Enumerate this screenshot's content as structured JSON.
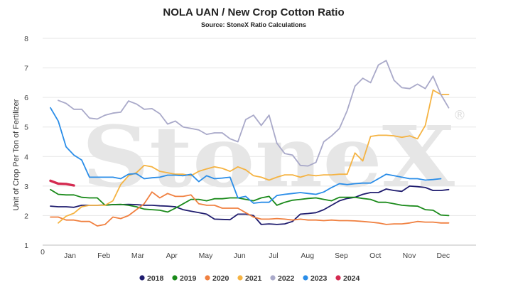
{
  "chart_data": {
    "type": "line",
    "title": "NOLA UAN / New Crop Cotton Ratio",
    "subtitle": "Source: StoneX Ratio Calculations",
    "watermark": "StoneX",
    "ylabel": "Unit of Crop Per Ton of Fertilizer",
    "ylim": [
      1,
      8
    ],
    "yticks": [
      "1",
      "2",
      "3",
      "4",
      "5",
      "6",
      "7",
      "8"
    ],
    "x_origin_label": "0",
    "months": [
      "Jan",
      "Feb",
      "Mar",
      "Apr",
      "May",
      "Jun",
      "Jul",
      "Aug",
      "Sep",
      "Oct",
      "Nov",
      "Dec"
    ],
    "grid": "horizontal",
    "legend_position": "bottom",
    "x_unit": "week of year",
    "series": [
      {
        "name": "2018",
        "color": "#1f1c6e",
        "points": [
          [
            1,
            2.32
          ],
          [
            2,
            2.3
          ],
          [
            3,
            2.3
          ],
          [
            4,
            2.28
          ],
          [
            5,
            2.35
          ],
          [
            6,
            2.35
          ],
          [
            7,
            2.35
          ],
          [
            8,
            2.36
          ],
          [
            9,
            2.37
          ],
          [
            10,
            2.37
          ],
          [
            11,
            2.38
          ],
          [
            12,
            2.37
          ],
          [
            13,
            2.35
          ],
          [
            14,
            2.35
          ],
          [
            15,
            2.33
          ],
          [
            16,
            2.32
          ],
          [
            17,
            2.3
          ],
          [
            18,
            2.2
          ],
          [
            19,
            2.15
          ],
          [
            20,
            2.1
          ],
          [
            21,
            2.05
          ],
          [
            22,
            1.88
          ],
          [
            23,
            1.87
          ],
          [
            24,
            1.86
          ],
          [
            25,
            2.05
          ],
          [
            26,
            2.05
          ],
          [
            27,
            2.0
          ],
          [
            28,
            1.7
          ],
          [
            29,
            1.72
          ],
          [
            30,
            1.7
          ],
          [
            31,
            1.72
          ],
          [
            32,
            1.8
          ],
          [
            33,
            2.05
          ],
          [
            34,
            2.07
          ],
          [
            35,
            2.1
          ],
          [
            36,
            2.2
          ],
          [
            37,
            2.35
          ],
          [
            38,
            2.5
          ],
          [
            39,
            2.58
          ],
          [
            40,
            2.62
          ],
          [
            41,
            2.72
          ],
          [
            42,
            2.78
          ],
          [
            43,
            2.78
          ],
          [
            44,
            2.9
          ],
          [
            45,
            2.85
          ],
          [
            46,
            2.82
          ],
          [
            47,
            3.0
          ],
          [
            48,
            2.98
          ],
          [
            49,
            2.95
          ],
          [
            50,
            2.85
          ],
          [
            51,
            2.85
          ],
          [
            52,
            2.88
          ]
        ]
      },
      {
        "name": "2019",
        "color": "#1a8a1a",
        "points": [
          [
            1,
            2.88
          ],
          [
            2,
            2.72
          ],
          [
            3,
            2.7
          ],
          [
            4,
            2.7
          ],
          [
            5,
            2.62
          ],
          [
            6,
            2.6
          ],
          [
            7,
            2.6
          ],
          [
            8,
            2.35
          ],
          [
            9,
            2.37
          ],
          [
            10,
            2.38
          ],
          [
            11,
            2.35
          ],
          [
            12,
            2.3
          ],
          [
            13,
            2.22
          ],
          [
            14,
            2.2
          ],
          [
            15,
            2.18
          ],
          [
            16,
            2.12
          ],
          [
            17,
            2.25
          ],
          [
            18,
            2.4
          ],
          [
            19,
            2.55
          ],
          [
            20,
            2.55
          ],
          [
            21,
            2.5
          ],
          [
            22,
            2.57
          ],
          [
            23,
            2.57
          ],
          [
            24,
            2.6
          ],
          [
            25,
            2.6
          ],
          [
            26,
            2.55
          ],
          [
            27,
            2.5
          ],
          [
            28,
            2.6
          ],
          [
            29,
            2.65
          ],
          [
            30,
            2.35
          ],
          [
            31,
            2.45
          ],
          [
            32,
            2.52
          ],
          [
            33,
            2.55
          ],
          [
            34,
            2.58
          ],
          [
            35,
            2.6
          ],
          [
            36,
            2.55
          ],
          [
            37,
            2.5
          ],
          [
            38,
            2.62
          ],
          [
            39,
            2.62
          ],
          [
            40,
            2.62
          ],
          [
            41,
            2.58
          ],
          [
            42,
            2.55
          ],
          [
            43,
            2.45
          ],
          [
            44,
            2.45
          ],
          [
            45,
            2.4
          ],
          [
            46,
            2.35
          ],
          [
            47,
            2.33
          ],
          [
            48,
            2.32
          ],
          [
            49,
            2.2
          ],
          [
            50,
            2.18
          ],
          [
            51,
            2.02
          ],
          [
            52,
            2.0
          ]
        ]
      },
      {
        "name": "2020",
        "color": "#f08040",
        "points": [
          [
            1,
            1.95
          ],
          [
            2,
            1.95
          ],
          [
            3,
            1.85
          ],
          [
            4,
            1.85
          ],
          [
            5,
            1.8
          ],
          [
            6,
            1.8
          ],
          [
            7,
            1.65
          ],
          [
            8,
            1.7
          ],
          [
            9,
            1.95
          ],
          [
            10,
            1.9
          ],
          [
            11,
            2.0
          ],
          [
            12,
            2.2
          ],
          [
            13,
            2.4
          ],
          [
            14,
            2.8
          ],
          [
            15,
            2.6
          ],
          [
            16,
            2.75
          ],
          [
            17,
            2.65
          ],
          [
            18,
            2.65
          ],
          [
            19,
            2.7
          ],
          [
            20,
            2.4
          ],
          [
            21,
            2.35
          ],
          [
            22,
            2.35
          ],
          [
            23,
            2.25
          ],
          [
            24,
            2.25
          ],
          [
            25,
            2.25
          ],
          [
            26,
            2.1
          ],
          [
            27,
            1.95
          ],
          [
            28,
            1.88
          ],
          [
            29,
            1.88
          ],
          [
            30,
            1.9
          ],
          [
            31,
            1.88
          ],
          [
            32,
            1.85
          ],
          [
            33,
            1.88
          ],
          [
            34,
            1.85
          ],
          [
            35,
            1.85
          ],
          [
            36,
            1.83
          ],
          [
            37,
            1.85
          ],
          [
            38,
            1.83
          ],
          [
            39,
            1.83
          ],
          [
            40,
            1.82
          ],
          [
            41,
            1.8
          ],
          [
            42,
            1.78
          ],
          [
            43,
            1.75
          ],
          [
            44,
            1.7
          ],
          [
            45,
            1.72
          ],
          [
            46,
            1.72
          ],
          [
            47,
            1.75
          ],
          [
            48,
            1.8
          ],
          [
            49,
            1.78
          ],
          [
            50,
            1.78
          ],
          [
            51,
            1.75
          ],
          [
            52,
            1.75
          ]
        ]
      },
      {
        "name": "2021",
        "color": "#f5b342",
        "points": [
          [
            2,
            1.75
          ],
          [
            3,
            1.98
          ],
          [
            4,
            2.08
          ],
          [
            5,
            2.3
          ],
          [
            6,
            2.35
          ],
          [
            7,
            2.35
          ],
          [
            8,
            2.35
          ],
          [
            9,
            2.5
          ],
          [
            10,
            3.05
          ],
          [
            11,
            3.35
          ],
          [
            12,
            3.45
          ],
          [
            13,
            3.7
          ],
          [
            14,
            3.65
          ],
          [
            15,
            3.5
          ],
          [
            16,
            3.45
          ],
          [
            17,
            3.4
          ],
          [
            18,
            3.4
          ],
          [
            19,
            3.35
          ],
          [
            20,
            3.5
          ],
          [
            21,
            3.58
          ],
          [
            22,
            3.65
          ],
          [
            23,
            3.6
          ],
          [
            24,
            3.5
          ],
          [
            25,
            3.65
          ],
          [
            26,
            3.55
          ],
          [
            27,
            3.35
          ],
          [
            28,
            3.3
          ],
          [
            29,
            3.2
          ],
          [
            30,
            3.3
          ],
          [
            31,
            3.38
          ],
          [
            32,
            3.38
          ],
          [
            33,
            3.3
          ],
          [
            34,
            3.38
          ],
          [
            35,
            3.35
          ],
          [
            36,
            3.38
          ],
          [
            37,
            3.38
          ],
          [
            38,
            3.4
          ],
          [
            39,
            3.4
          ],
          [
            40,
            4.12
          ],
          [
            41,
            3.85
          ],
          [
            42,
            4.68
          ],
          [
            43,
            4.72
          ],
          [
            44,
            4.72
          ],
          [
            45,
            4.7
          ],
          [
            46,
            4.65
          ],
          [
            47,
            4.7
          ],
          [
            48,
            4.6
          ],
          [
            49,
            5.05
          ],
          [
            50,
            6.25
          ],
          [
            51,
            6.1
          ],
          [
            52,
            6.1
          ]
        ]
      },
      {
        "name": "2022",
        "color": "#a9a9c9",
        "points": [
          [
            2,
            5.9
          ],
          [
            3,
            5.8
          ],
          [
            4,
            5.6
          ],
          [
            5,
            5.6
          ],
          [
            6,
            5.3
          ],
          [
            7,
            5.27
          ],
          [
            8,
            5.4
          ],
          [
            9,
            5.47
          ],
          [
            10,
            5.5
          ],
          [
            11,
            5.88
          ],
          [
            12,
            5.78
          ],
          [
            13,
            5.6
          ],
          [
            14,
            5.62
          ],
          [
            15,
            5.45
          ],
          [
            16,
            5.1
          ],
          [
            17,
            5.2
          ],
          [
            18,
            5.0
          ],
          [
            19,
            4.95
          ],
          [
            20,
            4.9
          ],
          [
            21,
            4.75
          ],
          [
            22,
            4.8
          ],
          [
            23,
            4.8
          ],
          [
            24,
            4.6
          ],
          [
            25,
            4.5
          ],
          [
            26,
            5.25
          ],
          [
            27,
            5.4
          ],
          [
            28,
            5.05
          ],
          [
            29,
            5.4
          ],
          [
            30,
            4.45
          ],
          [
            31,
            4.1
          ],
          [
            32,
            4.05
          ],
          [
            33,
            3.7
          ],
          [
            34,
            3.68
          ],
          [
            35,
            3.8
          ],
          [
            36,
            4.5
          ],
          [
            37,
            4.7
          ],
          [
            38,
            4.95
          ],
          [
            39,
            5.55
          ],
          [
            40,
            6.38
          ],
          [
            41,
            6.65
          ],
          [
            42,
            6.5
          ],
          [
            43,
            7.1
          ],
          [
            44,
            7.25
          ],
          [
            45,
            6.58
          ],
          [
            46,
            6.33
          ],
          [
            47,
            6.3
          ],
          [
            48,
            6.45
          ],
          [
            49,
            6.3
          ],
          [
            50,
            6.72
          ],
          [
            51,
            6.1
          ],
          [
            52,
            5.65
          ]
        ]
      },
      {
        "name": "2023",
        "color": "#2a8de8",
        "points": [
          [
            1,
            5.65
          ],
          [
            2,
            5.2
          ],
          [
            3,
            4.33
          ],
          [
            4,
            4.05
          ],
          [
            5,
            3.88
          ],
          [
            6,
            3.3
          ],
          [
            7,
            3.3
          ],
          [
            8,
            3.3
          ],
          [
            9,
            3.3
          ],
          [
            10,
            3.25
          ],
          [
            11,
            3.4
          ],
          [
            12,
            3.42
          ],
          [
            13,
            3.25
          ],
          [
            14,
            3.28
          ],
          [
            15,
            3.3
          ],
          [
            16,
            3.37
          ],
          [
            17,
            3.37
          ],
          [
            18,
            3.35
          ],
          [
            19,
            3.4
          ],
          [
            20,
            3.15
          ],
          [
            21,
            3.35
          ],
          [
            22,
            3.25
          ],
          [
            23,
            3.27
          ],
          [
            24,
            3.3
          ],
          [
            25,
            2.6
          ],
          [
            26,
            2.65
          ],
          [
            27,
            2.42
          ],
          [
            28,
            2.45
          ],
          [
            29,
            2.45
          ],
          [
            30,
            2.68
          ],
          [
            31,
            2.72
          ],
          [
            32,
            2.75
          ],
          [
            33,
            2.78
          ],
          [
            34,
            2.75
          ],
          [
            35,
            2.72
          ],
          [
            36,
            2.8
          ],
          [
            37,
            2.95
          ],
          [
            38,
            3.08
          ],
          [
            39,
            3.05
          ],
          [
            40,
            3.08
          ],
          [
            41,
            3.1
          ],
          [
            42,
            3.1
          ],
          [
            43,
            3.25
          ],
          [
            44,
            3.4
          ],
          [
            45,
            3.35
          ],
          [
            46,
            3.3
          ],
          [
            47,
            3.25
          ],
          [
            48,
            3.25
          ],
          [
            49,
            3.2
          ],
          [
            50,
            3.22
          ],
          [
            51,
            3.25
          ]
        ]
      },
      {
        "name": "2024",
        "color": "#d42a50",
        "points": [
          [
            1,
            3.18
          ],
          [
            2,
            3.08
          ],
          [
            3,
            3.07
          ],
          [
            4,
            3.02
          ]
        ]
      }
    ]
  }
}
